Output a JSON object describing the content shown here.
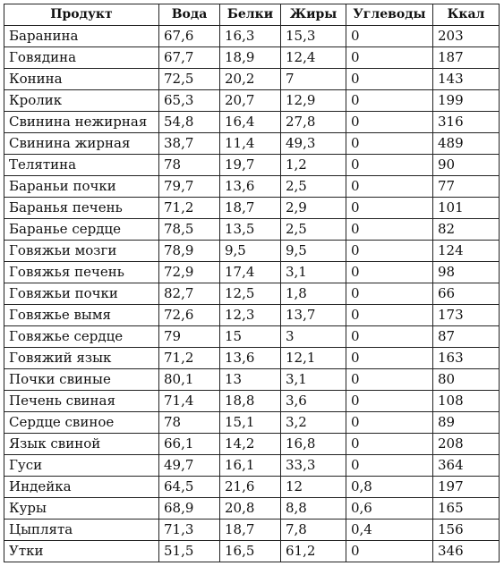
{
  "table": {
    "headers": [
      "Продукт",
      "Вода",
      "Белки",
      "Жиры",
      "Углеводы",
      "Ккал"
    ],
    "rows": [
      [
        "Баранина",
        "67,6",
        "16,3",
        "15,3",
        "0",
        "203"
      ],
      [
        "Говядина",
        "67,7",
        "18,9",
        "12,4",
        "0",
        "187"
      ],
      [
        "Конина",
        "72,5",
        "20,2",
        "7",
        "0",
        "143"
      ],
      [
        "Кролик",
        "65,3",
        "20,7",
        "12,9",
        "0",
        "199"
      ],
      [
        "Свинина нежирная",
        "54,8",
        "16,4",
        "27,8",
        "0",
        "316"
      ],
      [
        "Свинина жирная",
        "38,7",
        "11,4",
        "49,3",
        "0",
        "489"
      ],
      [
        "Телятина",
        "78",
        "19,7",
        "1,2",
        "0",
        "90"
      ],
      [
        "Бараньи почки",
        "79,7",
        "13,6",
        "2,5",
        "0",
        "77"
      ],
      [
        "Баранья печень",
        "71,2",
        "18,7",
        "2,9",
        "0",
        "101"
      ],
      [
        "Баранье сердце",
        "78,5",
        "13,5",
        "2,5",
        "0",
        "82"
      ],
      [
        "Говяжьи мозги",
        "78,9",
        "9,5",
        "9,5",
        "0",
        "124"
      ],
      [
        "Говяжья печень",
        "72,9",
        "17,4",
        "3,1",
        "0",
        "98"
      ],
      [
        "Говяжьи почки",
        "82,7",
        "12,5",
        "1,8",
        "0",
        "66"
      ],
      [
        "Говяжье вымя",
        "72,6",
        "12,3",
        "13,7",
        "0",
        "173"
      ],
      [
        "Говяжье сердце",
        "79",
        "15",
        "3",
        "0",
        "87"
      ],
      [
        "Говяжий язык",
        "71,2",
        "13,6",
        "12,1",
        "0",
        "163"
      ],
      [
        "Почки свиные",
        "80,1",
        "13",
        "3,1",
        "0",
        "80"
      ],
      [
        "Печень свиная",
        "71,4",
        "18,8",
        "3,6",
        "0",
        "108"
      ],
      [
        "Сердце свиное",
        "78",
        "15,1",
        "3,2",
        "0",
        "89"
      ],
      [
        "Язык свиной",
        "66,1",
        "14,2",
        "16,8",
        "0",
        "208"
      ],
      [
        "Гуси",
        "49,7",
        "16,1",
        "33,3",
        "0",
        "364"
      ],
      [
        "Индейка",
        "64,5",
        "21,6",
        "12",
        "0,8",
        "197"
      ],
      [
        "Куры",
        "68,9",
        "20,8",
        "8,8",
        "0,6",
        "165"
      ],
      [
        "Цыплята",
        "71,3",
        "18,7",
        "7,8",
        "0,4",
        "156"
      ],
      [
        "Утки",
        "51,5",
        "16,5",
        "61,2",
        "0",
        "346"
      ]
    ]
  }
}
